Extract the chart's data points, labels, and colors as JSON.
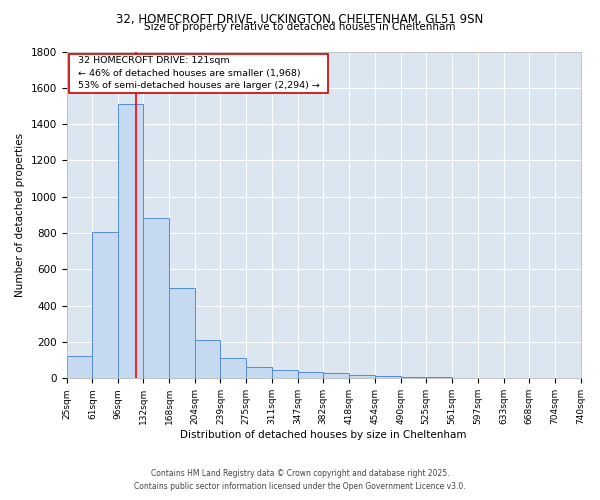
{
  "title_line1": "32, HOMECROFT DRIVE, UCKINGTON, CHELTENHAM, GL51 9SN",
  "title_line2": "Size of property relative to detached houses in Cheltenham",
  "xlabel": "Distribution of detached houses by size in Cheltenham",
  "ylabel": "Number of detached properties",
  "bar_edges": [
    25,
    61,
    96,
    132,
    168,
    204,
    239,
    275,
    311,
    347,
    382,
    418,
    454,
    490,
    525,
    561,
    597,
    633,
    668,
    704,
    740
  ],
  "bar_heights": [
    125,
    805,
    1510,
    885,
    500,
    210,
    110,
    65,
    48,
    35,
    28,
    20,
    12,
    8,
    5,
    3,
    2,
    1,
    1,
    0
  ],
  "bar_color": "#c5d9f1",
  "bar_edge_color": "#538dd5",
  "bg_color": "#ffffff",
  "plot_bg_color": "#dce6f1",
  "grid_color": "#ffffff",
  "red_line_x": 121,
  "annotation_text": "  32 HOMECROFT DRIVE: 121sqm  \n  ← 46% of detached houses are smaller (1,968)  \n  53% of semi-detached houses are larger (2,294) →  ",
  "annotation_box_color": "#ffffff",
  "annotation_border_color": "#cc0000",
  "ylim": [
    0,
    1800
  ],
  "yticks": [
    0,
    200,
    400,
    600,
    800,
    1000,
    1200,
    1400,
    1600,
    1800
  ],
  "tick_labels": [
    "25sqm",
    "61sqm",
    "96sqm",
    "132sqm",
    "168sqm",
    "204sqm",
    "239sqm",
    "275sqm",
    "311sqm",
    "347sqm",
    "382sqm",
    "418sqm",
    "454sqm",
    "490sqm",
    "525sqm",
    "561sqm",
    "597sqm",
    "633sqm",
    "668sqm",
    "704sqm",
    "740sqm"
  ],
  "footer_line1": "Contains HM Land Registry data © Crown copyright and database right 2025.",
  "footer_line2": "Contains public sector information licensed under the Open Government Licence v3.0.",
  "title_fontsize": 8.5,
  "subtitle_fontsize": 7.5,
  "ylabel_fontsize": 7.5,
  "xlabel_fontsize": 7.5,
  "ytick_fontsize": 7.5,
  "xtick_fontsize": 6.5,
  "annot_fontsize": 6.8,
  "footer_fontsize": 5.5
}
